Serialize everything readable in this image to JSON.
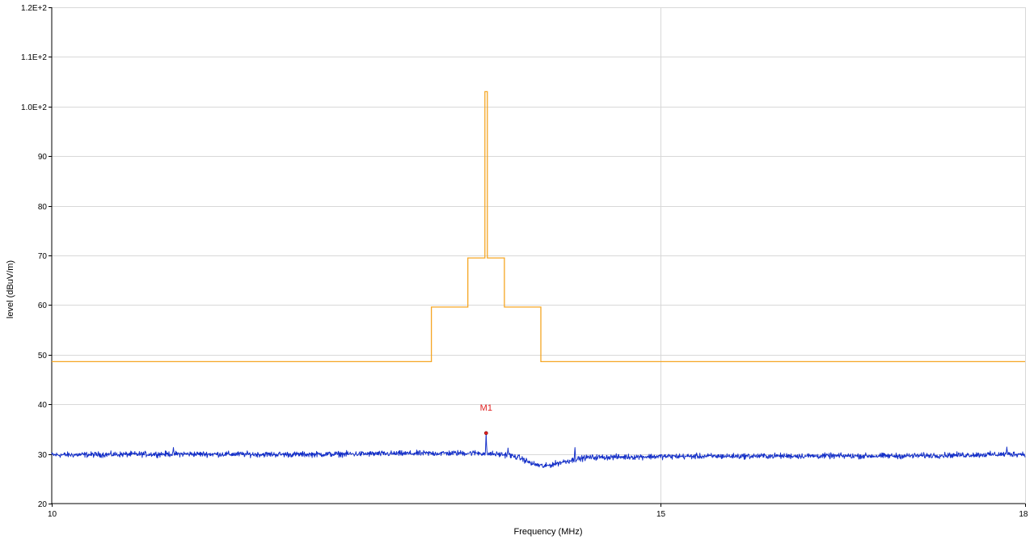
{
  "chart_data": {
    "type": "line",
    "xlabel": "Frequency (MHz)",
    "ylabel": "level (dBuV/m)",
    "xlim": [
      10,
      18
    ],
    "ylim": [
      20,
      120
    ],
    "x_ticks": [
      {
        "value": 10,
        "label": "10"
      },
      {
        "value": 15,
        "label": "15"
      },
      {
        "value": 18,
        "label": "18"
      }
    ],
    "y_ticks": [
      {
        "value": 20,
        "label": "20"
      },
      {
        "value": 30,
        "label": "30"
      },
      {
        "value": 40,
        "label": "40"
      },
      {
        "value": 50,
        "label": "50"
      },
      {
        "value": 60,
        "label": "60"
      },
      {
        "value": 70,
        "label": "70"
      },
      {
        "value": 80,
        "label": "80"
      },
      {
        "value": 90,
        "label": "90"
      },
      {
        "value": 100,
        "label": "1.0E+2"
      },
      {
        "value": 110,
        "label": "1.1E+2"
      },
      {
        "value": 120,
        "label": "1.2E+2"
      }
    ],
    "grid": true,
    "colors": {
      "limit": "#F5A623",
      "measured": "#1530C8",
      "marker": "#E02020",
      "grid": "#D8D8D8"
    },
    "series": [
      {
        "key": "limit",
        "style": "step",
        "x": [
          10,
          13.12,
          13.12,
          13.42,
          13.42,
          13.56,
          13.56,
          13.58,
          13.58,
          13.72,
          13.72,
          14.02,
          14.02,
          18
        ],
        "y": [
          48.6,
          48.6,
          59.6,
          59.6,
          69.5,
          69.5,
          103,
          103,
          69.5,
          69.5,
          59.6,
          59.6,
          48.6,
          48.6
        ]
      },
      {
        "key": "measured",
        "style": "noise",
        "base_x": [
          10,
          11,
          12,
          13,
          13.5,
          13.75,
          13.85,
          13.95,
          14.05,
          14.2,
          14.4,
          15,
          16,
          17,
          18
        ],
        "base_y": [
          29.8,
          30.0,
          29.9,
          30.1,
          30.2,
          29.8,
          29.2,
          28.0,
          27.5,
          28.4,
          29.3,
          29.5,
          29.6,
          29.6,
          30.0
        ],
        "spikes": [
          {
            "x": 13.57,
            "y": 34.2
          },
          {
            "x": 14.3,
            "y": 31.3
          },
          {
            "x": 13.75,
            "y": 31.2
          },
          {
            "x": 11.0,
            "y": 31.3
          },
          {
            "x": 17.85,
            "y": 31.4
          }
        ]
      }
    ],
    "markers": [
      {
        "label": "M1",
        "x": 13.57,
        "y": 34.2
      }
    ]
  }
}
